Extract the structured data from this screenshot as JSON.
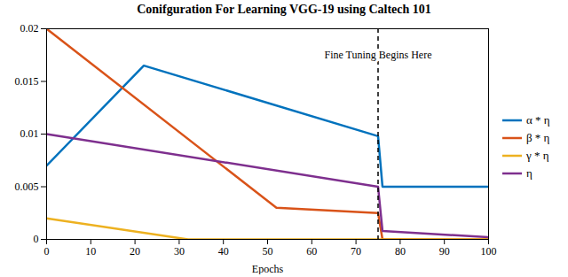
{
  "chart_data": {
    "type": "line",
    "title": "Conifguration For Learning VGG-19 using Caltech 101",
    "xlabel": "Epochs",
    "xlim": [
      0,
      100
    ],
    "ylim": [
      0,
      0.02
    ],
    "xticks": [
      0,
      10,
      20,
      30,
      40,
      50,
      60,
      70,
      80,
      90,
      100
    ],
    "yticks": [
      0,
      0.005,
      0.01,
      0.015,
      0.02
    ],
    "series": [
      {
        "name": "α * η",
        "color": "#0072BD",
        "x": [
          0,
          22,
          75,
          76,
          100
        ],
        "values": [
          0.007,
          0.0165,
          0.0098,
          0.005,
          0.005
        ]
      },
      {
        "name": "β * η",
        "color": "#D95319",
        "x": [
          0,
          52,
          75,
          76,
          100
        ],
        "values": [
          0.02,
          0.003,
          0.0025,
          0.0,
          0.0
        ]
      },
      {
        "name": "γ * η",
        "color": "#EDB120",
        "x": [
          0,
          32,
          75,
          76,
          100
        ],
        "values": [
          0.002,
          0.0,
          0.0,
          0.0,
          0.0
        ]
      },
      {
        "name": "η",
        "color": "#7E2F8E",
        "x": [
          0,
          75,
          76,
          100
        ],
        "values": [
          0.01,
          0.005,
          0.0008,
          0.0002
        ]
      }
    ],
    "vlines": [
      {
        "x": 75,
        "line_style": "dashed"
      }
    ],
    "annotations": [
      {
        "text": "Fine Tuning Begins Here",
        "x": 75,
        "y": 0.0175
      }
    ],
    "legend": "right",
    "grid": false
  }
}
